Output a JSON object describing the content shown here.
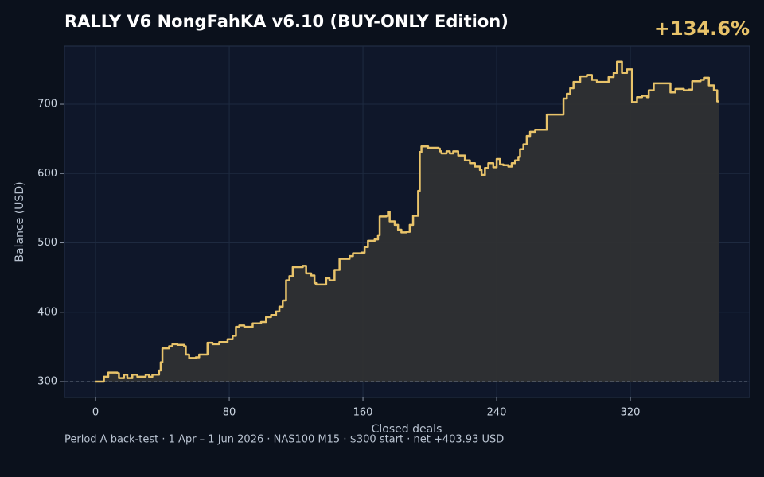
{
  "chart_data": {
    "type": "step",
    "title": "RALLY V6 NongFahKA v6.10 (BUY-ONLY Edition)",
    "annotation": "+134.6%",
    "footer": "Period A back-test  ·  1 Apr – 1 Jun 2026  ·  NAS100 M15  ·  $300 start  ·  net +403.93 USD",
    "x_label": "Closed deals",
    "y_label": "Balance (USD)",
    "xlim": [
      -18.6,
      391.4
    ],
    "ylim": [
      277.1,
      783.7
    ],
    "xticks": [
      0,
      80,
      160,
      240,
      320
    ],
    "yticks": [
      300,
      400,
      500,
      600,
      700
    ],
    "grid": true,
    "reference_line": 300,
    "series": [
      {
        "name": "Balance",
        "color": "#e8c36a",
        "fill": "#2f3033",
        "x": [
          0,
          5,
          7.6,
          13,
          14,
          17,
          19,
          22,
          25,
          30,
          32,
          34,
          38,
          39,
          40,
          44,
          46,
          49,
          53,
          54,
          56,
          60,
          62,
          67,
          70,
          74,
          79,
          82,
          84,
          86,
          89,
          94,
          99,
          102,
          105,
          108,
          110,
          112,
          114,
          116,
          118,
          122,
          124,
          126,
          129,
          131,
          132,
          136,
          138,
          140,
          143,
          146,
          150,
          152,
          154,
          159,
          161,
          163,
          167,
          169,
          170,
          174,
          175,
          176,
          179,
          181,
          183,
          186,
          188,
          190,
          193,
          194,
          195,
          199,
          205,
          206,
          207,
          210,
          212,
          214,
          217,
          221,
          224,
          227,
          230,
          231,
          233,
          235,
          238,
          240,
          242,
          244,
          247,
          249,
          251,
          253,
          254,
          256,
          258,
          260,
          263,
          269,
          270,
          279,
          280,
          282,
          284,
          286,
          290,
          294,
          297,
          300,
          305,
          307,
          310,
          312,
          315,
          318,
          321,
          324,
          327,
          330,
          331,
          334,
          342,
          344,
          347,
          352,
          355,
          357,
          362,
          364,
          367,
          370,
          372,
          373
        ],
        "values": [
          300,
          307,
          313,
          312,
          305,
          310,
          305,
          310,
          307,
          310,
          307,
          310,
          316,
          328,
          348,
          351,
          354,
          353,
          351,
          339,
          334,
          335,
          339,
          356,
          354,
          357,
          361,
          366,
          379,
          381,
          379,
          384,
          386,
          393,
          396,
          401,
          408,
          417,
          446,
          452,
          465,
          465,
          467,
          456,
          453,
          442,
          440,
          440,
          449,
          446,
          461,
          477,
          477,
          481,
          485,
          486,
          494,
          503,
          505,
          511,
          538,
          539,
          545,
          531,
          526,
          519,
          515,
          516,
          526,
          539,
          575,
          631,
          639,
          637,
          636,
          632,
          629,
          632,
          629,
          632,
          626,
          619,
          615,
          610,
          605,
          598,
          608,
          615,
          609,
          621,
          613,
          612,
          610,
          615,
          619,
          624,
          635,
          642,
          654,
          660,
          663,
          663,
          685,
          685,
          708,
          715,
          723,
          732,
          740,
          742,
          735,
          732,
          732,
          739,
          745,
          761,
          745,
          750,
          703,
          710,
          712,
          710,
          720,
          730,
          730,
          717,
          722,
          720,
          721,
          733,
          735,
          738,
          727,
          720,
          704,
          704
        ]
      }
    ]
  }
}
